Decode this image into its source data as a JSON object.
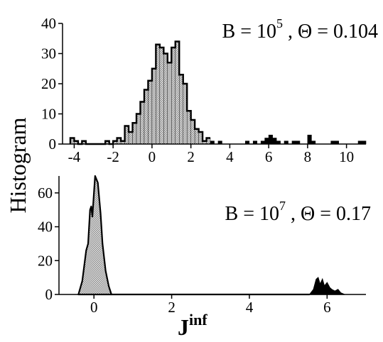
{
  "chart_data": [
    {
      "type": "histogram",
      "annotation": {
        "prefix": "B = 10",
        "exponent": "5",
        "suffix": " , Θ = 0.104"
      },
      "xlim": [
        -4.6,
        11.0
      ],
      "ylim": [
        0,
        40
      ],
      "xticks": [
        -4,
        -2,
        0,
        2,
        4,
        6,
        8,
        10
      ],
      "yticks": [
        0,
        10,
        20,
        30,
        40
      ],
      "bin_width": 0.2,
      "bins": [
        {
          "x": -4.2,
          "y": 2
        },
        {
          "x": -4.0,
          "y": 1
        },
        {
          "x": -3.8,
          "y": 0
        },
        {
          "x": -3.6,
          "y": 1
        },
        {
          "x": -3.4,
          "y": 0
        },
        {
          "x": -3.2,
          "y": 0
        },
        {
          "x": -3.0,
          "y": 0
        },
        {
          "x": -2.8,
          "y": 0
        },
        {
          "x": -2.6,
          "y": 0
        },
        {
          "x": -2.4,
          "y": 1
        },
        {
          "x": -2.2,
          "y": 0
        },
        {
          "x": -2.0,
          "y": 1
        },
        {
          "x": -1.8,
          "y": 2
        },
        {
          "x": -1.6,
          "y": 1
        },
        {
          "x": -1.4,
          "y": 6
        },
        {
          "x": -1.2,
          "y": 4
        },
        {
          "x": -1.0,
          "y": 7
        },
        {
          "x": -0.8,
          "y": 10
        },
        {
          "x": -0.6,
          "y": 14
        },
        {
          "x": -0.4,
          "y": 18
        },
        {
          "x": -0.2,
          "y": 21
        },
        {
          "x": 0.0,
          "y": 25
        },
        {
          "x": 0.2,
          "y": 33
        },
        {
          "x": 0.4,
          "y": 32
        },
        {
          "x": 0.6,
          "y": 30
        },
        {
          "x": 0.8,
          "y": 27
        },
        {
          "x": 1.0,
          "y": 32
        },
        {
          "x": 1.2,
          "y": 34
        },
        {
          "x": 1.4,
          "y": 23
        },
        {
          "x": 1.6,
          "y": 20
        },
        {
          "x": 1.8,
          "y": 11
        },
        {
          "x": 2.0,
          "y": 8
        },
        {
          "x": 2.2,
          "y": 5
        },
        {
          "x": 2.4,
          "y": 4
        },
        {
          "x": 2.6,
          "y": 1
        },
        {
          "x": 2.8,
          "y": 2
        },
        {
          "x": 3.0,
          "y": 1
        },
        {
          "x": 3.2,
          "y": 0
        },
        {
          "x": 3.4,
          "y": 1
        },
        {
          "x": 3.6,
          "y": 0
        },
        {
          "x": 3.8,
          "y": 0
        },
        {
          "x": 4.0,
          "y": 0
        },
        {
          "x": 4.2,
          "y": 0
        },
        {
          "x": 4.4,
          "y": 0
        },
        {
          "x": 4.6,
          "y": 0
        },
        {
          "x": 4.8,
          "y": 1
        },
        {
          "x": 5.0,
          "y": 0
        },
        {
          "x": 5.2,
          "y": 1
        },
        {
          "x": 5.4,
          "y": 0
        },
        {
          "x": 5.6,
          "y": 1
        },
        {
          "x": 5.8,
          "y": 2
        },
        {
          "x": 6.0,
          "y": 3
        },
        {
          "x": 6.2,
          "y": 2
        },
        {
          "x": 6.4,
          "y": 1
        },
        {
          "x": 6.6,
          "y": 0
        },
        {
          "x": 6.8,
          "y": 1
        },
        {
          "x": 7.0,
          "y": 0
        },
        {
          "x": 7.2,
          "y": 1
        },
        {
          "x": 7.4,
          "y": 1
        },
        {
          "x": 7.6,
          "y": 0
        },
        {
          "x": 7.8,
          "y": 0
        },
        {
          "x": 8.0,
          "y": 3
        },
        {
          "x": 8.2,
          "y": 1
        },
        {
          "x": 8.4,
          "y": 0
        },
        {
          "x": 8.6,
          "y": 0
        },
        {
          "x": 8.8,
          "y": 0
        },
        {
          "x": 9.0,
          "y": 0
        },
        {
          "x": 9.2,
          "y": 1
        },
        {
          "x": 9.4,
          "y": 1
        },
        {
          "x": 9.6,
          "y": 0
        },
        {
          "x": 9.8,
          "y": 0
        },
        {
          "x": 10.0,
          "y": 0
        },
        {
          "x": 10.2,
          "y": 0
        },
        {
          "x": 10.4,
          "y": 0
        },
        {
          "x": 10.6,
          "y": 1
        },
        {
          "x": 10.8,
          "y": 1
        }
      ],
      "fill": "#bdbdbd",
      "dark_fill": "#000000",
      "dark_above": 3.0
    },
    {
      "type": "area",
      "annotation": {
        "prefix": "B = 10",
        "exponent": "7",
        "suffix": " , Θ = 0.17"
      },
      "xlim": [
        -0.9,
        7.0
      ],
      "ylim": [
        0,
        70
      ],
      "xticks": [
        0,
        2,
        4,
        6
      ],
      "yticks": [
        0,
        20,
        40,
        60
      ],
      "peak1": [
        [
          -0.4,
          0
        ],
        [
          -0.3,
          8
        ],
        [
          -0.2,
          26
        ],
        [
          -0.15,
          30
        ],
        [
          -0.1,
          50
        ],
        [
          -0.07,
          52
        ],
        [
          -0.04,
          46
        ],
        [
          0.0,
          60
        ],
        [
          0.03,
          70
        ],
        [
          0.1,
          66
        ],
        [
          0.17,
          48
        ],
        [
          0.22,
          30
        ],
        [
          0.3,
          14
        ],
        [
          0.38,
          5
        ],
        [
          0.45,
          0
        ]
      ],
      "baseline": [
        [
          0.45,
          0
        ],
        [
          5.55,
          0
        ]
      ],
      "peak2": [
        [
          5.55,
          0
        ],
        [
          5.65,
          3
        ],
        [
          5.72,
          9
        ],
        [
          5.77,
          10
        ],
        [
          5.82,
          6
        ],
        [
          5.88,
          9
        ],
        [
          5.93,
          5
        ],
        [
          6.0,
          7
        ],
        [
          6.07,
          4
        ],
        [
          6.12,
          3
        ],
        [
          6.2,
          2
        ],
        [
          6.28,
          3
        ],
        [
          6.35,
          1
        ],
        [
          6.45,
          0
        ]
      ],
      "fill": "#bdbdbd",
      "dark_fill": "#000000"
    }
  ],
  "y_axis_label": "Histogram",
  "x_axis_label": {
    "main": "J",
    "sup": "inf"
  }
}
